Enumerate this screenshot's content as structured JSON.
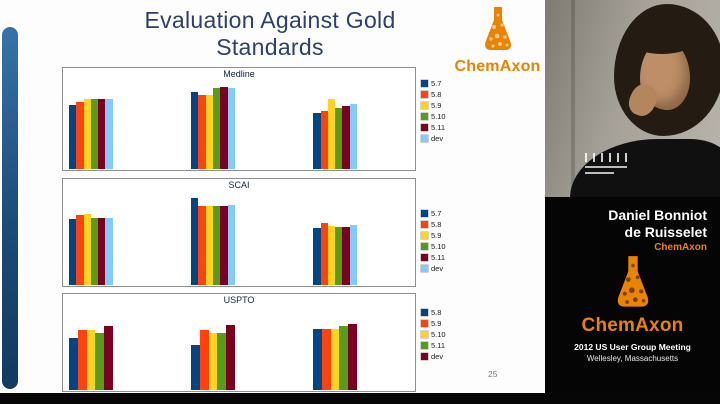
{
  "slide": {
    "title_line1": "Evaluation Against Gold",
    "title_line2": "Standards",
    "logo_text": "ChemAxon",
    "page_number": "25"
  },
  "video_panel": {
    "speaker_name_line1": "Daniel Bonniot",
    "speaker_name_line2": "de Ruisselet",
    "speaker_org": "ChemAxon",
    "logo_text": "ChemAxon",
    "event_line1": "2012 US User Group Meeting",
    "event_line2": "Wellesley, Massachusetts"
  },
  "colors": {
    "chemaxon_orange": "#e98300",
    "accent_bar_blue": "#1d4e7e",
    "title_blue": "#2e3e6d",
    "series_palette": [
      "#004586",
      "#ff420e",
      "#ffd320",
      "#579d1c",
      "#7e0021",
      "#83caff"
    ]
  },
  "chart_data": [
    {
      "type": "bar",
      "title": "Medline",
      "categories": [
        "",
        "",
        ""
      ],
      "ylim": [
        0,
        1
      ],
      "grid": false,
      "legend_position": "right",
      "series": [
        {
          "name": "5.7",
          "color": "#004586",
          "values": [
            0.74,
            0.88,
            0.64
          ]
        },
        {
          "name": "5.8",
          "color": "#ff420e",
          "values": [
            0.77,
            0.85,
            0.67
          ]
        },
        {
          "name": "5.9",
          "color": "#ffd320",
          "values": [
            0.8,
            0.85,
            0.8
          ]
        },
        {
          "name": "5.10",
          "color": "#579d1c",
          "values": [
            0.81,
            0.93,
            0.7
          ]
        },
        {
          "name": "5.11",
          "color": "#7e0021",
          "values": [
            0.81,
            0.94,
            0.73
          ]
        },
        {
          "name": "dev",
          "color": "#83caff",
          "values": [
            0.81,
            0.93,
            0.75
          ]
        }
      ]
    },
    {
      "type": "bar",
      "title": "SCAI",
      "categories": [
        "",
        "",
        ""
      ],
      "ylim": [
        0,
        1
      ],
      "grid": false,
      "legend_position": "right",
      "series": [
        {
          "name": "5.7",
          "color": "#004586",
          "values": [
            0.72,
            0.95,
            0.62
          ]
        },
        {
          "name": "5.8",
          "color": "#ff420e",
          "values": [
            0.76,
            0.86,
            0.67
          ]
        },
        {
          "name": "5.9",
          "color": "#ffd320",
          "values": [
            0.77,
            0.86,
            0.64
          ]
        },
        {
          "name": "5.10",
          "color": "#579d1c",
          "values": [
            0.73,
            0.86,
            0.63
          ]
        },
        {
          "name": "5.11",
          "color": "#7e0021",
          "values": [
            0.73,
            0.86,
            0.63
          ]
        },
        {
          "name": "dev",
          "color": "#83caff",
          "values": [
            0.73,
            0.87,
            0.65
          ]
        }
      ]
    },
    {
      "type": "bar",
      "title": "USPTO",
      "categories": [
        "",
        "",
        ""
      ],
      "ylim": [
        0,
        1
      ],
      "grid": false,
      "legend_position": "right",
      "series": [
        {
          "name": "5.8",
          "color": "#004586",
          "values": [
            0.64,
            0.55,
            0.75
          ]
        },
        {
          "name": "5.9",
          "color": "#ff420e",
          "values": [
            0.73,
            0.73,
            0.75
          ]
        },
        {
          "name": "5.10",
          "color": "#ffd320",
          "values": [
            0.73,
            0.7,
            0.75
          ]
        },
        {
          "name": "5.11",
          "color": "#579d1c",
          "values": [
            0.7,
            0.7,
            0.78
          ]
        },
        {
          "name": "dev",
          "color": "#7e0021",
          "values": [
            0.78,
            0.79,
            0.8
          ]
        }
      ]
    }
  ]
}
